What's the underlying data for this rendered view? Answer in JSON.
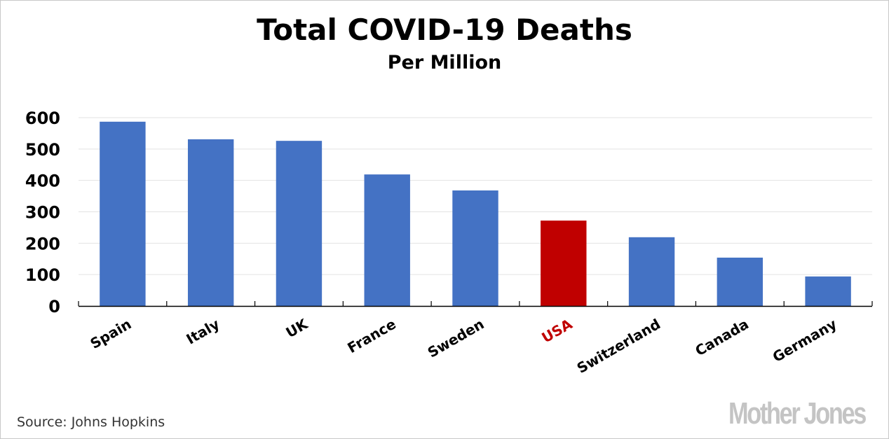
{
  "chart_data": {
    "type": "bar",
    "title": "Total COVID-19 Deaths",
    "subtitle": "Per Million",
    "xlabel": "",
    "ylabel": "",
    "ylim": [
      0,
      600
    ],
    "yticks": [
      0,
      100,
      200,
      300,
      400,
      500,
      600
    ],
    "ytick_labels": [
      "0",
      "100",
      "200",
      "300",
      "400",
      "500",
      "600"
    ],
    "grid": true,
    "categories": [
      "Spain",
      "Italy",
      "UK",
      "France",
      "Sweden",
      "USA",
      "Switzerland",
      "Canada",
      "Germany"
    ],
    "values": [
      587,
      531,
      526,
      419,
      368,
      272,
      219,
      154,
      94
    ],
    "highlight": "USA",
    "colors": {
      "default": "#4472c4",
      "highlight": "#c00000",
      "label_default": "#000000",
      "label_highlight": "#c00000",
      "grid": "#e3e3e3"
    }
  },
  "footer": {
    "source": "Source: Johns Hopkins",
    "logo": "Mother Jones"
  }
}
